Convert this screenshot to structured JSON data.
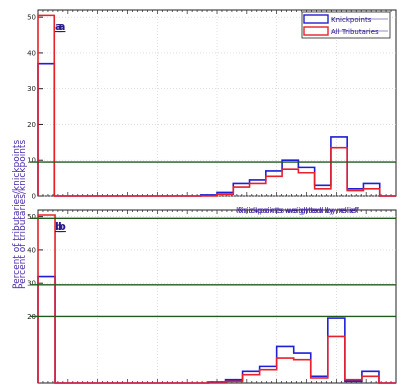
{
  "chart_data": [
    {
      "panel": "a",
      "type": "histogram",
      "panel_label": "a",
      "ylim": [
        0,
        52
      ],
      "yticks": [
        0,
        10,
        20,
        30,
        40,
        50
      ],
      "grid": true,
      "legend_position": "top-right",
      "legend": [
        "Knickpoints",
        "All Tributaries"
      ],
      "reference_lines": [
        9.5
      ],
      "series": [
        {
          "name": "Knickpoints",
          "color": "#1f1fd6",
          "values": [
            37,
            0,
            0,
            0,
            0,
            0,
            0,
            0,
            0,
            0,
            0.3,
            1,
            3.5,
            4.5,
            7,
            10,
            8,
            3,
            16.5,
            2,
            3.5,
            0
          ]
        },
        {
          "name": "All Tributaries",
          "color": "#e8202a",
          "values": [
            50.5,
            0,
            0,
            0,
            0,
            0,
            0,
            0,
            0,
            0,
            0,
            0.5,
            2.5,
            3.5,
            5.5,
            7.5,
            6.5,
            2,
            13.5,
            1.5,
            2,
            0
          ]
        }
      ]
    },
    {
      "panel": "b",
      "type": "histogram",
      "panel_label": "b",
      "ylim": [
        0,
        52
      ],
      "yticks": [
        20,
        30,
        40,
        50
      ],
      "grid": true,
      "annotation": "Knickpoints weighted by relief",
      "reference_lines": [
        20,
        29.5,
        49.5
      ],
      "series": [
        {
          "name": "Knickpoints",
          "color": "#1f1fd6",
          "values": [
            32,
            0,
            0,
            0,
            0,
            0,
            0,
            0,
            0,
            0,
            0.3,
            1,
            3.5,
            5,
            11,
            9,
            2,
            19.5,
            0.5,
            3.5,
            0
          ]
        },
        {
          "name": "All Tributaries",
          "color": "#e8202a",
          "values": [
            50.5,
            0,
            0,
            0,
            0,
            0,
            0,
            0,
            0,
            0,
            0,
            0.5,
            2.5,
            4,
            7.5,
            7,
            1.5,
            14,
            1,
            2,
            0
          ]
        }
      ]
    }
  ],
  "ylabel_text": "Percent of tributaries/knickpoints",
  "colors": {
    "reference_line": "#1f5a1f",
    "grid": "#cccccc",
    "axis": "#222222"
  }
}
